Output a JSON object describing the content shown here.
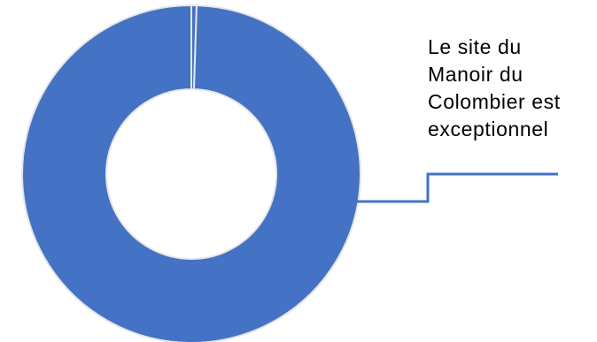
{
  "chart_data": {
    "type": "pie",
    "variant": "doughnut",
    "slices": [
      {
        "label": "",
        "value": 0.005,
        "color": "#4472C4"
      },
      {
        "label": "Le site du Manoir du Colombier est exceptionnel",
        "value": 0.995,
        "color": "#4472C4"
      }
    ],
    "label_lines": [
      "Le site du",
      "Manoir du",
      "Colombier est",
      "exceptionnel"
    ],
    "separator_color": "#e6e6e6",
    "leader_line_color": "#4472C4",
    "legend": "none"
  }
}
